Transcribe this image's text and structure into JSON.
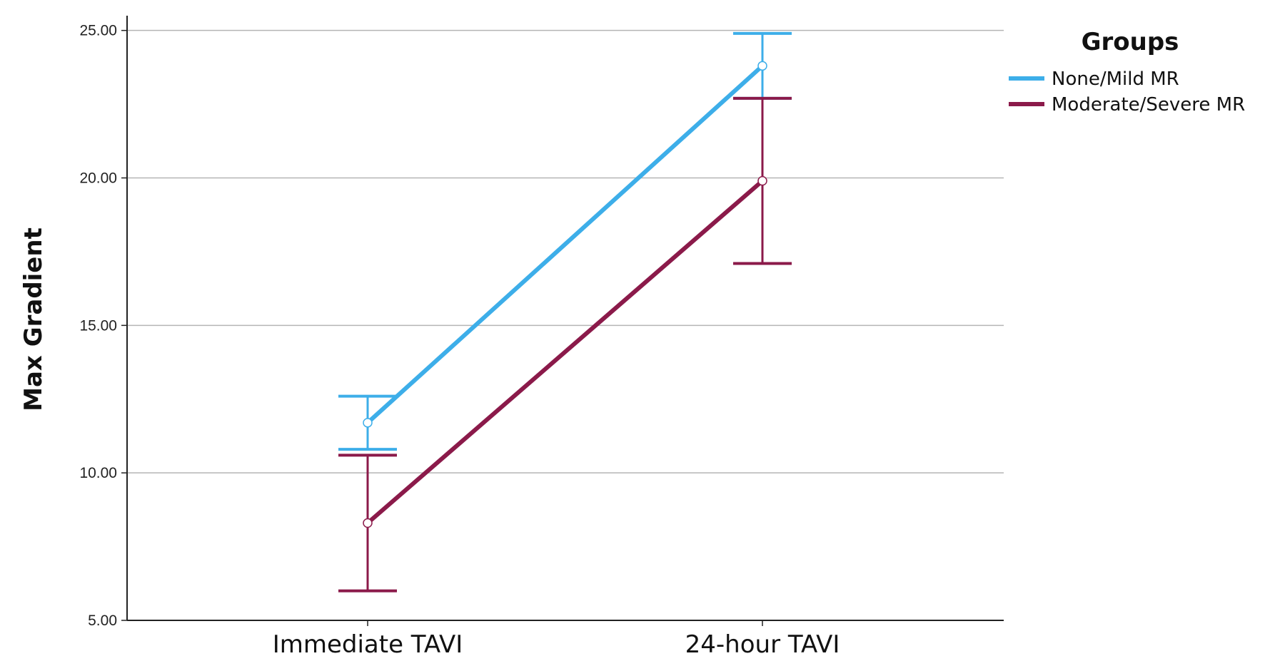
{
  "chart_data": {
    "type": "line",
    "title": "",
    "xlabel": "",
    "ylabel": "Max Gradient",
    "categories": [
      "Immediate TAVI",
      "24-hour TAVI"
    ],
    "ylim": [
      5,
      25.5
    ],
    "yticks": [
      5,
      10,
      15,
      20,
      25
    ],
    "ytick_labels": [
      "5.00",
      "10.00",
      "15.00",
      "20.00",
      "25.00"
    ],
    "grid": "horizontal",
    "legend": {
      "title": "Groups",
      "position": "top-right"
    },
    "series": [
      {
        "name": "None/Mild MR",
        "color": "#3daee9",
        "values": [
          11.7,
          23.8
        ],
        "error_low": [
          10.8,
          22.7
        ],
        "error_high": [
          12.6,
          24.9
        ]
      },
      {
        "name": "Moderate/Severe MR",
        "color": "#8b1a4a",
        "values": [
          8.3,
          19.9
        ],
        "error_low": [
          6.0,
          17.1
        ],
        "error_high": [
          10.6,
          22.7
        ]
      }
    ]
  }
}
